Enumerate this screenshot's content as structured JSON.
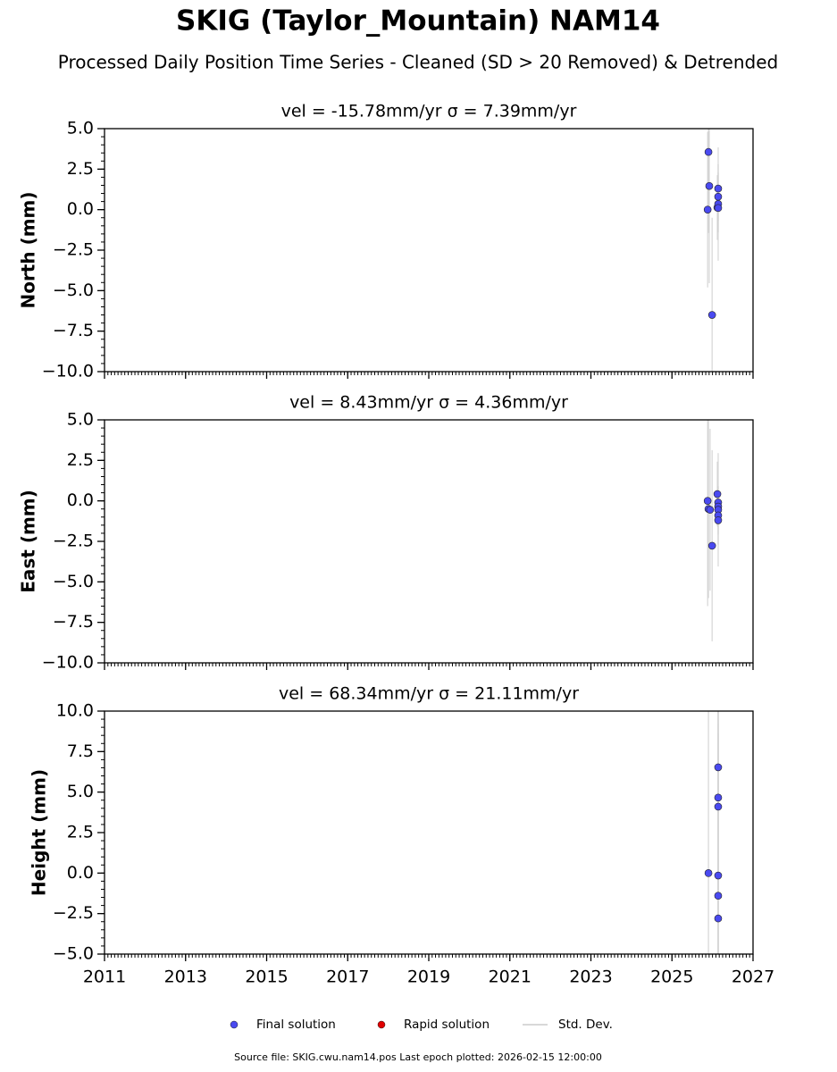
{
  "title": "SKIG (Taylor_Mountain) NAM14",
  "subtitle": "Processed Daily Position Time Series - Cleaned (SD > 20 Removed) & Detrended",
  "chart_data": [
    {
      "type": "scatter",
      "title": "vel = -15.78mm/yr   σ = 7.39mm/yr",
      "ylabel": "North (mm)",
      "xlim": [
        2011,
        2027
      ],
      "xticks": [
        2011,
        2013,
        2015,
        2017,
        2019,
        2021,
        2023,
        2025,
        2027
      ],
      "xtick_labels": false,
      "ylim": [
        -10,
        5
      ],
      "yticks": [
        {
          "value": -10,
          "label": "−10.0"
        },
        {
          "value": -7.5,
          "label": "−7.5"
        },
        {
          "value": -5,
          "label": "−5.0"
        },
        {
          "value": -2.5,
          "label": "−2.5"
        },
        {
          "value": 0,
          "label": "0.0"
        },
        {
          "value": 2.5,
          "label": "2.5"
        },
        {
          "value": 5,
          "label": "5.0"
        }
      ],
      "series": [
        {
          "name": "Final solution",
          "color": "#4a4af0",
          "error_color": "#cccccc",
          "x": [
            2025.88,
            2025.9,
            2025.92,
            2025.99,
            2026.12,
            2026.14,
            2026.14,
            2026.14,
            2026.14
          ],
          "values": [
            0.0,
            3.56,
            1.46,
            -6.5,
            0.13,
            1.3,
            0.8,
            0.35,
            0.1
          ],
          "errors": [
            4.8,
            5,
            6,
            6,
            2,
            1.5,
            1.5,
            3.5,
            1.5
          ]
        }
      ]
    },
    {
      "type": "scatter",
      "title": "vel = 8.43mm/yr   σ = 4.36mm/yr",
      "ylabel": "East (mm)",
      "xlim": [
        2011,
        2027
      ],
      "xticks": [
        2011,
        2013,
        2015,
        2017,
        2019,
        2021,
        2023,
        2025,
        2027
      ],
      "xtick_labels": false,
      "ylim": [
        -10,
        5
      ],
      "yticks": [
        {
          "value": -10,
          "label": "−10.0"
        },
        {
          "value": -7.5,
          "label": "−7.5"
        },
        {
          "value": -5,
          "label": "−5.0"
        },
        {
          "value": -2.5,
          "label": "−2.5"
        },
        {
          "value": 0,
          "label": "0.0"
        },
        {
          "value": 2.5,
          "label": "2.5"
        },
        {
          "value": 5,
          "label": "5.0"
        }
      ],
      "series": [
        {
          "name": "Final solution",
          "color": "#4a4af0",
          "error_color": "#cccccc",
          "x": [
            2025.88,
            2025.9,
            2025.94,
            2025.99,
            2026.12,
            2026.14,
            2026.14,
            2026.14,
            2026.14,
            2026.14
          ],
          "values": [
            0.0,
            -0.5,
            -0.55,
            -2.77,
            0.42,
            -0.1,
            -0.35,
            -0.55,
            -0.9,
            -1.2
          ],
          "errors": [
            6.5,
            5.5,
            5,
            5.9,
            2,
            1,
            1,
            3.5,
            1.2,
            1.5
          ]
        }
      ]
    },
    {
      "type": "scatter",
      "title": "vel = 68.34mm/yr   σ = 21.11mm/yr",
      "ylabel": "Height (mm)",
      "xlim": [
        2011,
        2027
      ],
      "xticks": [
        2011,
        2013,
        2015,
        2017,
        2019,
        2021,
        2023,
        2025,
        2027
      ],
      "xtick_labels": true,
      "ylim": [
        -5,
        10
      ],
      "yticks": [
        {
          "value": -5,
          "label": "−5.0"
        },
        {
          "value": -2.5,
          "label": "−2.5"
        },
        {
          "value": 0,
          "label": "0.0"
        },
        {
          "value": 2.5,
          "label": "2.5"
        },
        {
          "value": 5,
          "label": "5.0"
        },
        {
          "value": 7.5,
          "label": "7.5"
        },
        {
          "value": 10,
          "label": "10.0"
        }
      ],
      "series": [
        {
          "name": "Final solution",
          "color": "#4a4af0",
          "error_color": "#cccccc",
          "x": [
            2025.9,
            2026.14,
            2026.14,
            2026.14,
            2026.14,
            2026.14,
            2026.14
          ],
          "values": [
            0.0,
            6.53,
            4.66,
            4.1,
            -0.15,
            -1.4,
            -2.8
          ],
          "errors": [
            15,
            8,
            10,
            10,
            12,
            10,
            12
          ]
        }
      ]
    }
  ],
  "legend": [
    {
      "name": "Final solution",
      "color": "#4a4af0",
      "marker": "circle"
    },
    {
      "name": "Rapid solution",
      "color": "#e00000",
      "marker": "circle"
    },
    {
      "name": "Std. Dev.",
      "color": "#cccccc",
      "marker": "line"
    }
  ],
  "footer": "Source file: SKIG.cwu.nam14.pos  Last epoch plotted: 2026-02-15 12:00:00"
}
